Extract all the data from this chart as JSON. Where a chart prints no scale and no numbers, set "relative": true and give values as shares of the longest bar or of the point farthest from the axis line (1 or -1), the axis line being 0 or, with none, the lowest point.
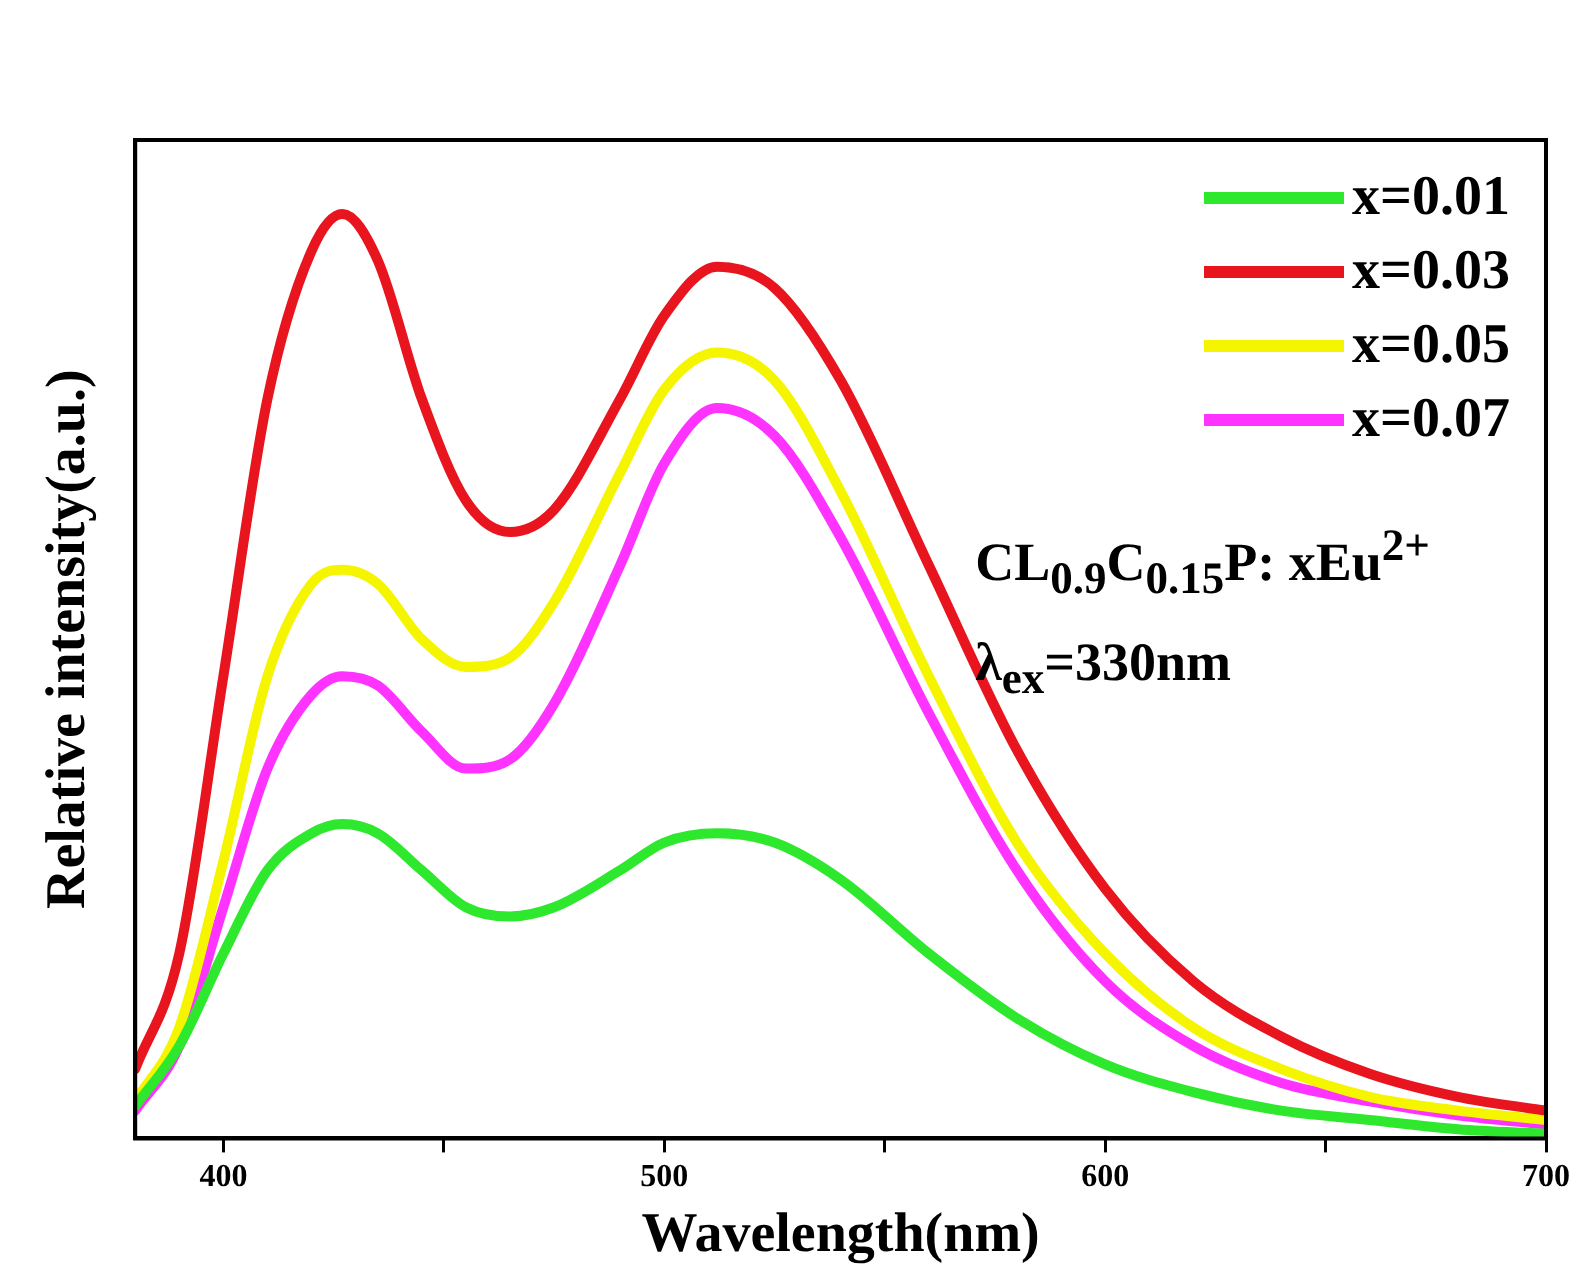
{
  "chart_data": {
    "type": "line",
    "xlabel": "Wavelength(nm)",
    "ylabel": "Relative intensity(a.u.)",
    "relative": true,
    "xlim": [
      380,
      700
    ],
    "xticks": [
      400,
      {
        "value": 450,
        "label": null
      },
      500,
      {
        "value": 550,
        "label": null
      },
      600,
      {
        "value": 650,
        "label": null
      },
      700
    ],
    "x": [
      380,
      390,
      400,
      410,
      420,
      427,
      435,
      445,
      455,
      465,
      475,
      490,
      500,
      512,
      525,
      540,
      560,
      580,
      600,
      620,
      640,
      660,
      680,
      700
    ],
    "series": [
      {
        "name": "x=0.01",
        "color": "#2ee82e",
        "values": [
          0.035,
          0.1,
          0.2,
          0.29,
          0.33,
          0.34,
          0.33,
          0.29,
          0.25,
          0.24,
          0.25,
          0.29,
          0.32,
          0.33,
          0.32,
          0.28,
          0.2,
          0.13,
          0.08,
          0.05,
          0.03,
          0.02,
          0.01,
          0.005
        ]
      },
      {
        "name": "x=0.03",
        "color": "#e8141e",
        "values": [
          0.075,
          0.2,
          0.5,
          0.8,
          0.96,
          1.0,
          0.95,
          0.8,
          0.69,
          0.656,
          0.68,
          0.8,
          0.89,
          0.943,
          0.92,
          0.82,
          0.62,
          0.42,
          0.27,
          0.17,
          0.11,
          0.07,
          0.045,
          0.03
        ]
      },
      {
        "name": "x=0.05",
        "color": "#f5f500",
        "values": [
          0.04,
          0.12,
          0.3,
          0.5,
          0.6,
          0.615,
          0.6,
          0.54,
          0.51,
          0.52,
          0.58,
          0.72,
          0.81,
          0.85,
          0.82,
          0.7,
          0.5,
          0.32,
          0.2,
          0.12,
          0.075,
          0.045,
          0.03,
          0.02
        ]
      },
      {
        "name": "x=0.07",
        "color": "#ff33ff",
        "values": [
          0.03,
          0.1,
          0.25,
          0.4,
          0.48,
          0.5,
          0.49,
          0.44,
          0.4,
          0.41,
          0.47,
          0.62,
          0.73,
          0.79,
          0.76,
          0.65,
          0.46,
          0.29,
          0.17,
          0.1,
          0.06,
          0.04,
          0.025,
          0.015
        ]
      }
    ],
    "legend": "top right",
    "grid": false,
    "marker": "none",
    "line_style": "solid",
    "annotations": [
      "CL$_{0.9}$C$_{0.15}$P: xEu$^{2+}$",
      "λ$_{ex}$=330nm"
    ]
  }
}
